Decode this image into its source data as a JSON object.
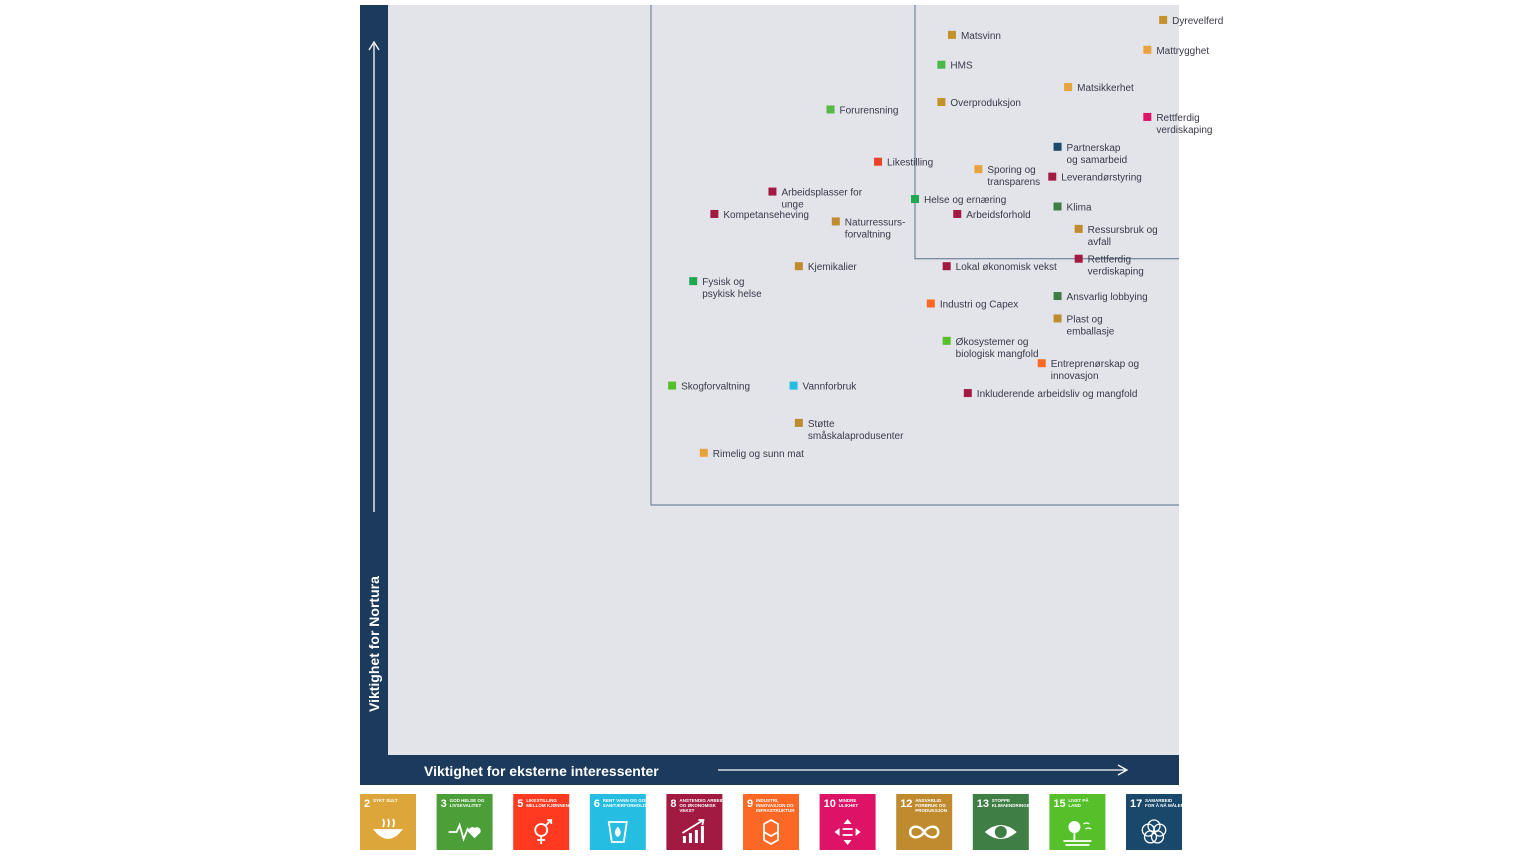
{
  "chart_data": {
    "type": "scatter",
    "xlabel": "Viktighet for eksterne interessenter",
    "ylabel": "Viktighet for Nortura",
    "points": [
      {
        "label": [
          "Dyrevelferd"
        ],
        "x": 97,
        "y": 98,
        "color": "#c5912b"
      },
      {
        "label": [
          "Matsvinn"
        ],
        "x": 57,
        "y": 96,
        "color": "#c5912b"
      },
      {
        "label": [
          "Mattrygghet"
        ],
        "x": 94,
        "y": 94,
        "color": "#e8a33d"
      },
      {
        "label": [
          "HMS"
        ],
        "x": 55,
        "y": 92,
        "color": "#4cb84a"
      },
      {
        "label": [
          "Matsikkerhet"
        ],
        "x": 79,
        "y": 89,
        "color": "#e8a33d"
      },
      {
        "label": [
          "Overproduksjon"
        ],
        "x": 55,
        "y": 87,
        "color": "#c5912b"
      },
      {
        "label": [
          "Forurensning"
        ],
        "x": 34,
        "y": 86,
        "color": "#57b947"
      },
      {
        "label": [
          "Rettferdig",
          "verdiskaping"
        ],
        "x": 94,
        "y": 85,
        "color": "#dd1367"
      },
      {
        "label": [
          "Partnerskap",
          "og samarbeid"
        ],
        "x": 77,
        "y": 81,
        "color": "#19486a"
      },
      {
        "label": [
          "Likestilling"
        ],
        "x": 43,
        "y": 79,
        "color": "#ef402b"
      },
      {
        "label": [
          "Sporing og",
          "transparens"
        ],
        "x": 62,
        "y": 78,
        "color": "#e8a33d"
      },
      {
        "label": [
          "Leverandørstyring"
        ],
        "x": 76,
        "y": 77,
        "color": "#a21942"
      },
      {
        "label": [
          "Arbeidsplasser for",
          "unge"
        ],
        "x": 23,
        "y": 75,
        "color": "#a21942"
      },
      {
        "label": [
          "Helse og ernæring"
        ],
        "x": 50,
        "y": 74,
        "color": "#1fa84f"
      },
      {
        "label": [
          "Kompetanseheving"
        ],
        "x": 12,
        "y": 72,
        "color": "#a21942"
      },
      {
        "label": [
          "Klima"
        ],
        "x": 77,
        "y": 73,
        "color": "#3f7e44"
      },
      {
        "label": [
          "Arbeidsforhold"
        ],
        "x": 58,
        "y": 72,
        "color": "#a21942"
      },
      {
        "label": [
          "Naturressurs-",
          "forvaltning"
        ],
        "x": 35,
        "y": 71,
        "color": "#bf8b2e"
      },
      {
        "label": [
          "Ressursbruk og",
          "avfall"
        ],
        "x": 81,
        "y": 70,
        "color": "#bf8b2e"
      },
      {
        "label": [
          "Kjemikalier"
        ],
        "x": 28,
        "y": 65,
        "color": "#bf8b2e"
      },
      {
        "label": [
          "Lokal økonomisk vekst"
        ],
        "x": 56,
        "y": 65,
        "color": "#a21942"
      },
      {
        "label": [
          "Rettferdig",
          "verdiskaping"
        ],
        "x": 81,
        "y": 66,
        "color": "#a21942"
      },
      {
        "label": [
          "Fysisk og",
          "psykisk helse"
        ],
        "x": 8,
        "y": 63,
        "color": "#1fa84f"
      },
      {
        "label": [
          "Industri og Capex"
        ],
        "x": 53,
        "y": 60,
        "color": "#fd6925"
      },
      {
        "label": [
          "Ansvarlig lobbying"
        ],
        "x": 77,
        "y": 61,
        "color": "#3f7e44"
      },
      {
        "label": [
          "Plast og",
          "emballasje"
        ],
        "x": 77,
        "y": 58,
        "color": "#bf8b2e"
      },
      {
        "label": [
          "Økosystemer og",
          "biologisk mangfold"
        ],
        "x": 56,
        "y": 55,
        "color": "#56c02b"
      },
      {
        "label": [
          "Entreprenørskap og",
          "innovasjon"
        ],
        "x": 74,
        "y": 52,
        "color": "#fd6925"
      },
      {
        "label": [
          "Skogforvaltning"
        ],
        "x": 4,
        "y": 49,
        "color": "#56c02b"
      },
      {
        "label": [
          "Vannforbruk"
        ],
        "x": 27,
        "y": 49,
        "color": "#26bde2"
      },
      {
        "label": [
          "Inkluderende arbeidsliv og mangfold"
        ],
        "x": 60,
        "y": 48,
        "color": "#a21942"
      },
      {
        "label": [
          "Støtte",
          "småskalaprodusenter"
        ],
        "x": 28,
        "y": 44,
        "color": "#bf8b2e"
      },
      {
        "label": [
          "Rimelig og sunn mat"
        ],
        "x": 10,
        "y": 40,
        "color": "#e8a33d"
      }
    ],
    "quadrants": [
      {
        "x": [
          0,
          100
        ],
        "y": [
          33,
          100
        ]
      },
      {
        "x": [
          50,
          100
        ],
        "y": [
          66,
          100
        ]
      }
    ],
    "colors": {
      "frame": "#1b3a5c",
      "plot_background": "#e3e3ea",
      "quadrant_line": "#5a6f8c"
    }
  },
  "sdg": [
    {
      "num": "2",
      "title": [
        "SYKT SULT"
      ],
      "color": "#dda63a",
      "icon": "bowl-icon"
    },
    {
      "num": "3",
      "title": [
        "GOD HELSE OG",
        "LIVSKVALITET"
      ],
      "color": "#4c9f38",
      "icon": "heartbeat-icon"
    },
    {
      "num": "5",
      "title": [
        "LIKESTILLING",
        "MELLOM KJØNNENE"
      ],
      "color": "#ff3a21",
      "icon": "gender-icon"
    },
    {
      "num": "6",
      "title": [
        "RENT VANN OG GODE",
        "SANITÆRFORHOLD"
      ],
      "color": "#26bde2",
      "icon": "water-drop-icon"
    },
    {
      "num": "8",
      "title": [
        "ANSTENDIG ARBEID",
        "OG ØKONOMISK",
        "VEKST"
      ],
      "color": "#a21942",
      "icon": "growth-chart-icon"
    },
    {
      "num": "9",
      "title": [
        "INDUSTRI,",
        "INNOVASJON OG",
        "INFRASTRUKTUR"
      ],
      "color": "#fd6925",
      "icon": "cubes-icon"
    },
    {
      "num": "10",
      "title": [
        "MINDRE",
        "ULIKHET"
      ],
      "color": "#dd1367",
      "icon": "equality-arrows-icon"
    },
    {
      "num": "12",
      "title": [
        "ANSVARLIG",
        "FORBRUK OG",
        "PRODUKSJON"
      ],
      "color": "#bf8b2e",
      "icon": "infinity-icon"
    },
    {
      "num": "13",
      "title": [
        "STOPPE",
        "KLIMAENDRINGENE"
      ],
      "color": "#3f7e44",
      "icon": "eye-globe-icon"
    },
    {
      "num": "15",
      "title": [
        "LIVET PÅ",
        "LAND"
      ],
      "color": "#56c02b",
      "icon": "tree-icon"
    },
    {
      "num": "17",
      "title": [
        "SAMARBEID",
        "FOR Å NÅ MÅLENE"
      ],
      "color": "#19486a",
      "icon": "rings-icon"
    }
  ]
}
